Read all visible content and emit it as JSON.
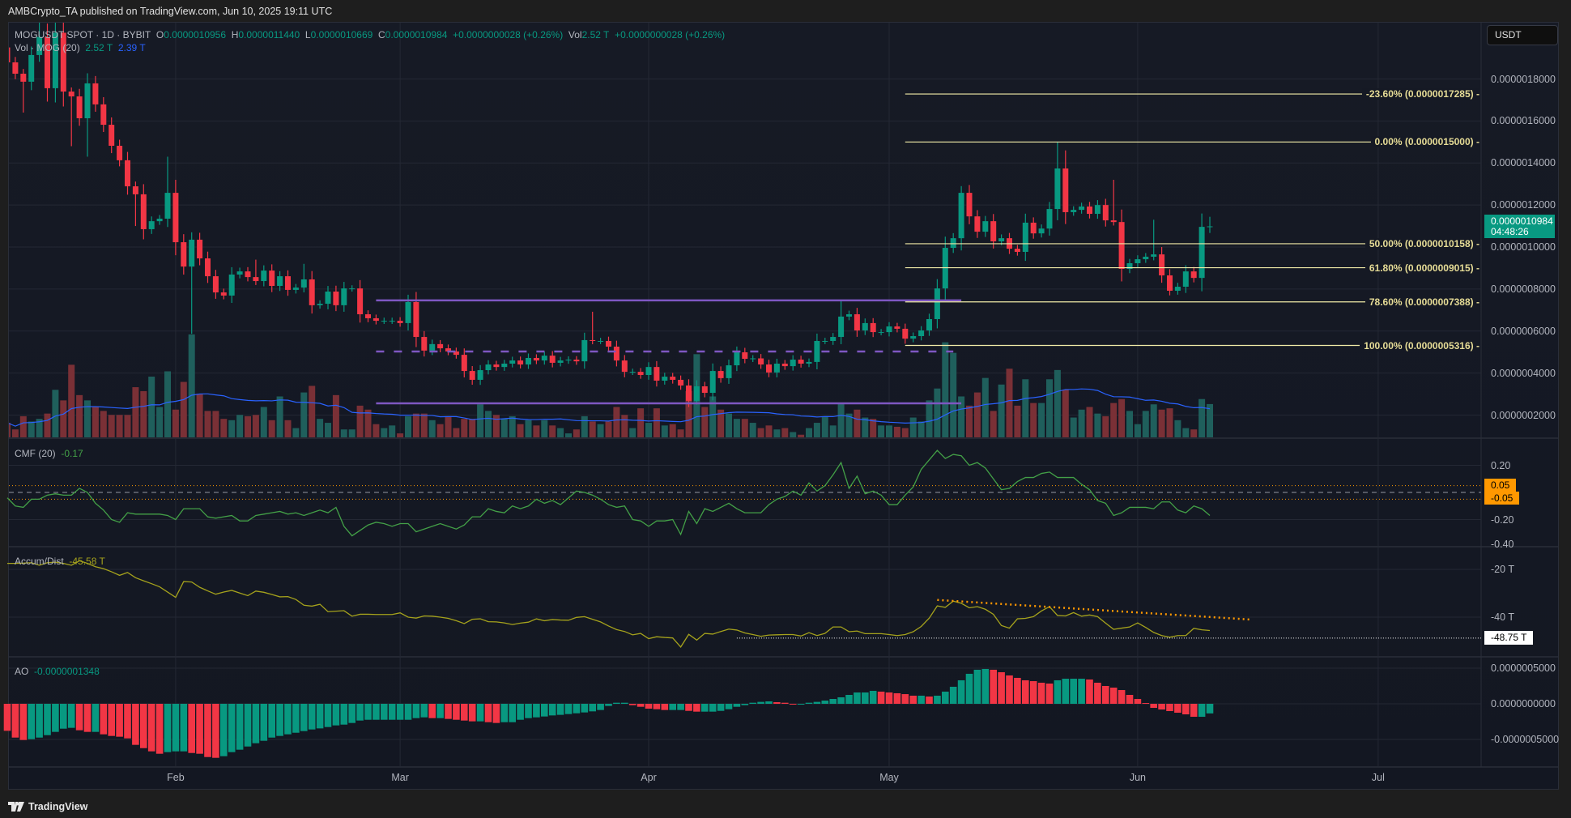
{
  "header": {
    "published": "AMBCrypto_TA published on TradingView.com, Jun 10, 2025 19:11 UTC"
  },
  "legend": {
    "symbol": "MOGUSDT SPOT · 1D · BYBIT",
    "o_label": "O",
    "o": "0.0000010956",
    "h_label": "H",
    "h": "0.0000011440",
    "l_label": "L",
    "l": "0.0000010669",
    "c_label": "C",
    "c": "0.0000010984",
    "change": "+0.0000000028 (+0.26%)",
    "vol_label": "Vol",
    "vol": "2.52 T",
    "vol_change": "+0.0000000028 (+0.26%)"
  },
  "vol_legend": {
    "title": "Vol · MOG (20)",
    "vol": "2.52 T",
    "ma": "2.39 T"
  },
  "currency_button": "USDT",
  "price_axis": [
    "0.0000018000",
    "0.0000016000",
    "0.0000014000",
    "0.0000012000",
    "0.0000010000",
    "0.0000008000",
    "0.0000006000",
    "0.0000004000",
    "0.0000002000"
  ],
  "last_price": {
    "value": "0.0000010984",
    "countdown": "04:48:26"
  },
  "fib": {
    "from": "2025-05-03",
    "levels": [
      {
        "label": "-23.60% (0.0000017285)",
        "price": 1.7285e-06
      },
      {
        "label": "0.00% (0.0000015000)",
        "price": 1.5e-06
      },
      {
        "label": "50.00% (0.0000010158)",
        "price": 1.0158e-06
      },
      {
        "label": "61.80% (0.0000009015)",
        "price": 9.015e-07
      },
      {
        "label": "78.60% (0.0000007388)",
        "price": 7.388e-07
      },
      {
        "label": "100.00% (0.0000005316)",
        "price": 5.316e-07
      }
    ]
  },
  "cmf": {
    "title": "CMF (20)",
    "value": "-0.17",
    "axis": [
      "0.20",
      "-0.20",
      "-0.40"
    ],
    "upper_band": "0.05",
    "lower_band": "-0.05"
  },
  "ad": {
    "title": "Accum/Dist",
    "value": "-45.58 T",
    "axis": [
      "-20 T",
      "-40 T"
    ],
    "marker": "-48.75 T"
  },
  "ao": {
    "title": "AO",
    "value": "-0.0000001348",
    "axis": [
      "0.0000005000",
      "0.0000000000",
      "-0.0000005000"
    ]
  },
  "time_axis": [
    {
      "label": "Feb",
      "date": "2025-02-01"
    },
    {
      "label": "Mar",
      "date": "2025-03-01"
    },
    {
      "label": "Apr",
      "date": "2025-04-01"
    },
    {
      "label": "May",
      "date": "2025-05-01"
    },
    {
      "label": "Jun",
      "date": "2025-06-01"
    },
    {
      "label": "Jul",
      "date": "2025-07-01"
    }
  ],
  "footer": {
    "logo": "TradingView"
  },
  "colors": {
    "up": "#089981",
    "down": "#f23645",
    "vol_up": "#1f5f5c",
    "vol_down": "#7a3036",
    "vol_ma": "#2962ff",
    "fib": "#f2eca8",
    "range_lines": "#7e57c2",
    "cmf": "#43a047",
    "ad": "#a5a21c",
    "band": "#ff9800",
    "trend": "#ff9800"
  },
  "chart_data": {
    "type": "candlestick",
    "x": {
      "start": "2025-01-11",
      "end": "2025-06-10",
      "interval": "1D"
    },
    "ylim": [
      1e-07,
      2e-06
    ],
    "first_open": 1.95e-06,
    "close": [
      1.879e-06,
      1.825e-06,
      1.787e-06,
      1.914e-06,
      2e-06,
      1.756e-06,
      2.02e-06,
      1.74e-06,
      1.717e-06,
      1.613e-06,
      1.779e-06,
      1.679e-06,
      1.582e-06,
      1.482e-06,
      1.413e-06,
      1.289e-06,
      1.251e-06,
      1.085e-06,
      1.123e-06,
      1.135e-06,
      1.258e-06,
      1.023e-06,
      9.07e-07,
      1.035e-06,
      9.46e-07,
      8.61e-07,
      7.84e-07,
      7.69e-07,
      8.69e-07,
      8.84e-07,
      8.57e-07,
      8.38e-07,
      8.88e-07,
      8.15e-07,
      8.61e-07,
      7.96e-07,
      8.07e-07,
      8.46e-07,
      7.23e-07,
      7.3e-07,
      7.88e-07,
      7.23e-07,
      8.03e-07,
      8.03e-07,
      6.8e-07,
      6.61e-07,
      6.49e-07,
      6.49e-07,
      6.49e-07,
      6.38e-07,
      7.38e-07,
      5.72e-07,
      5.07e-07,
      5.38e-07,
      5.18e-07,
      5.03e-07,
      4.87e-07,
      4.1e-07,
      3.68e-07,
      4.14e-07,
      4.41e-07,
      4.29e-07,
      4.45e-07,
      4.6e-07,
      4.41e-07,
      4.72e-07,
      4.6e-07,
      4.83e-07,
      4.49e-07,
      4.6e-07,
      4.64e-07,
      4.56e-07,
      5.57e-07,
      5.53e-07,
      5.53e-07,
      5.26e-07,
      4.6e-07,
      4.06e-07,
      4.06e-07,
      3.91e-07,
      4.29e-07,
      3.64e-07,
      3.83e-07,
      3.68e-07,
      3.41e-07,
      2.68e-07,
      3.37e-07,
      3.06e-07,
      4.1e-07,
      3.76e-07,
      4.37e-07,
      4.99e-07,
      4.68e-07,
      4.7e-07,
      4.41e-07,
      4.03e-07,
      4.45e-07,
      4.33e-07,
      4.64e-07,
      4.45e-07,
      4.53e-07,
      5.53e-07,
      5.53e-07,
      5.72e-07,
      6.69e-07,
      6.8e-07,
      6.03e-07,
      6.38e-07,
      5.95e-07,
      5.95e-07,
      6.22e-07,
      6.11e-07,
      5.64e-07,
      5.76e-07,
      6.03e-07,
      6.57e-07,
      8.03e-07,
      9.96e-07,
      1.042e-06,
      1.258e-06,
      1.146e-06,
      1.073e-06,
      1.123e-06,
      1.027e-06,
      1.042e-06,
      9.92e-07,
      9.77e-07,
      1.116e-06,
      1.065e-06,
      1.088e-06,
      1.181e-06,
      1.374e-06,
      1.166e-06,
      1.177e-06,
      1.193e-06,
      1.158e-06,
      1.2e-06,
      1.127e-06,
      1.119e-06,
      8.96e-07,
      9.23e-07,
      9.42e-07,
      9.54e-07,
      9.65e-07,
      8.65e-07,
      7.92e-07,
      8.11e-07,
      8.84e-07,
      8.53e-07,
      1.096e-06,
      1.0984e-06
    ],
    "wicks": [
      {
        "date": "2025-01-13",
        "low": 1.64e-06
      },
      {
        "date": "2025-01-15",
        "high": 2.15e-06
      },
      {
        "date": "2025-01-17",
        "high": 2.15e-06
      },
      {
        "date": "2025-01-19",
        "low": 1.48e-06
      },
      {
        "date": "2025-01-21",
        "low": 1.43e-06
      },
      {
        "date": "2025-01-27",
        "low": 1.1e-06
      },
      {
        "date": "2025-01-31",
        "high": 1.43e-06
      },
      {
        "date": "2025-02-03",
        "high": 1.07e-06,
        "low": 5.87e-07
      },
      {
        "date": "2025-02-11",
        "high": 9.4e-07
      },
      {
        "date": "2025-02-17",
        "high": 9.2e-07
      },
      {
        "date": "2025-03-25",
        "high": 6.92e-07
      },
      {
        "date": "2025-04-07",
        "low": 2.5e-07
      },
      {
        "date": "2025-04-25",
        "high": 7.45e-07
      },
      {
        "date": "2025-05-10",
        "high": 1.29e-06
      },
      {
        "date": "2025-05-22",
        "high": 1.5e-06
      },
      {
        "date": "2025-05-23",
        "high": 1.46e-06
      },
      {
        "date": "2025-05-29",
        "high": 1.32e-06
      },
      {
        "date": "2025-06-03",
        "high": 1.13e-06
      },
      {
        "date": "2025-06-05",
        "low": 7.7e-07
      },
      {
        "date": "2025-06-10",
        "high": 1.144e-06,
        "low": 1.0669e-06
      }
    ],
    "volume_unit": "T",
    "volume": [
      1.1,
      0.6,
      1.6,
      1.2,
      1.4,
      1.8,
      3.6,
      2.8,
      5.5,
      3.2,
      2.8,
      2.3,
      2.0,
      1.7,
      1.7,
      1.7,
      3.8,
      3.5,
      4.6,
      2.3,
      5.0,
      2.1,
      4.2,
      7.8,
      3.3,
      2.0,
      2.0,
      1.4,
      1.3,
      1.7,
      1.6,
      1.7,
      2.3,
      1.3,
      3.1,
      1.3,
      0.7,
      3.4,
      3.9,
      1.4,
      1.1,
      3.2,
      0.6,
      0.6,
      2.4,
      2.1,
      1.0,
      0.7,
      0.9,
      0.3,
      1.6,
      1.8,
      1.8,
      1.3,
      1.0,
      1.6,
      0.7,
      1.4,
      1.4,
      2.5,
      2.0,
      1.7,
      1.4,
      1.6,
      1.0,
      1.3,
      0.9,
      1.3,
      0.9,
      0.7,
      0.3,
      0.6,
      1.6,
      1.2,
      1.0,
      1.2,
      2.3,
      1.7,
      0.7,
      2.2,
      1.1,
      2.2,
      0.9,
      1.0,
      0.6,
      3.5,
      6.3,
      2.3,
      3.1,
      2.1,
      1.8,
      1.4,
      1.4,
      1.1,
      0.7,
      0.9,
      0.6,
      0.7,
      0.4,
      0.2,
      0.7,
      1.1,
      1.6,
      0.9,
      2.6,
      1.8,
      2.1,
      1.5,
      1.4,
      0.9,
      0.9,
      0.8,
      0.7,
      1.5,
      1.2,
      2.8,
      3.7,
      7.2,
      6.4,
      3.1,
      2.4,
      3.4,
      4.5,
      2.0,
      4.0,
      5.2,
      2.4,
      4.4,
      2.6,
      2.6,
      4.4,
      5.1,
      3.6,
      1.5,
      2.1,
      2.3,
      1.8,
      1.6,
      2.6,
      2.9,
      2.0,
      1.0,
      2.0,
      2.5,
      2.1,
      2.2,
      1.3,
      0.7,
      0.6,
      2.9,
      2.52
    ],
    "range_lines": [
      {
        "price": 7.46e-07,
        "style": "solid",
        "from": "2025-02-26",
        "to": "2025-05-10"
      },
      {
        "price": 5.03e-07,
        "style": "dashed",
        "from": "2025-02-26",
        "to": "2025-05-09"
      },
      {
        "price": 2.56e-07,
        "style": "solid",
        "from": "2025-02-26",
        "to": "2025-05-10"
      }
    ],
    "cmf": [
      -0.04,
      -0.1,
      -0.11,
      -0.05,
      -0.05,
      -0.02,
      -0.01,
      -0.02,
      -0.02,
      0.03,
      0.0,
      -0.08,
      -0.13,
      -0.2,
      -0.22,
      -0.15,
      -0.16,
      -0.16,
      -0.16,
      -0.16,
      -0.17,
      -0.2,
      -0.12,
      -0.12,
      -0.12,
      -0.18,
      -0.19,
      -0.18,
      -0.17,
      -0.21,
      -0.21,
      -0.17,
      -0.16,
      -0.15,
      -0.14,
      -0.16,
      -0.15,
      -0.17,
      -0.15,
      -0.13,
      -0.15,
      -0.11,
      -0.25,
      -0.32,
      -0.28,
      -0.24,
      -0.22,
      -0.23,
      -0.25,
      -0.23,
      -0.23,
      -0.29,
      -0.27,
      -0.25,
      -0.23,
      -0.25,
      -0.27,
      -0.24,
      -0.18,
      -0.18,
      -0.12,
      -0.14,
      -0.15,
      -0.1,
      -0.12,
      -0.1,
      -0.05,
      -0.08,
      -0.06,
      -0.09,
      -0.04,
      0.01,
      0.0,
      -0.02,
      -0.05,
      -0.09,
      -0.11,
      -0.1,
      -0.2,
      -0.21,
      -0.25,
      -0.21,
      -0.21,
      -0.2,
      -0.31,
      -0.14,
      -0.23,
      -0.12,
      -0.14,
      -0.11,
      -0.08,
      -0.12,
      -0.15,
      -0.15,
      -0.15,
      -0.09,
      -0.05,
      -0.03,
      0.01,
      -0.02,
      0.07,
      0.01,
      0.05,
      0.13,
      0.22,
      0.03,
      0.12,
      -0.01,
      0.01,
      -0.02,
      -0.09,
      -0.09,
      -0.02,
      0.04,
      0.17,
      0.24,
      0.31,
      0.25,
      0.28,
      0.27,
      0.2,
      0.22,
      0.18,
      0.1,
      0.02,
      0.03,
      0.08,
      0.11,
      0.11,
      0.14,
      0.15,
      0.11,
      0.11,
      0.11,
      0.06,
      0.02,
      -0.06,
      -0.08,
      -0.17,
      -0.15,
      -0.11,
      -0.11,
      -0.11,
      -0.12,
      -0.07,
      -0.07,
      -0.13,
      -0.15,
      -0.1,
      -0.12,
      -0.17
    ],
    "ad_unit": "T",
    "ad": [
      -17.5,
      -17.5,
      -17.4,
      -17.2,
      -18.3,
      -17.2,
      -17.0,
      -17.5,
      -18.3,
      -16.4,
      -17.5,
      -18.9,
      -19.7,
      -21,
      -22.5,
      -21.3,
      -23.5,
      -24.8,
      -26,
      -27.3,
      -29.5,
      -31.7,
      -25.1,
      -25.3,
      -27.5,
      -29,
      -30.4,
      -29.5,
      -28.8,
      -29.9,
      -31,
      -29.1,
      -29.6,
      -30.5,
      -31.5,
      -31.4,
      -32.6,
      -35,
      -35.4,
      -34.6,
      -37.7,
      -37.5,
      -37.3,
      -39.6,
      -38.8,
      -38.8,
      -38.9,
      -38.9,
      -38.9,
      -38.2,
      -40,
      -40.4,
      -39.5,
      -39.6,
      -40,
      -40.5,
      -41.5,
      -42.7,
      -40.9,
      -40.7,
      -41.9,
      -42,
      -42.4,
      -43.1,
      -42.5,
      -42.1,
      -40.7,
      -41.5,
      -41,
      -41.2,
      -41.3,
      -40.1,
      -39.8,
      -40.9,
      -42,
      -43.7,
      -45.2,
      -46,
      -47.4,
      -46.8,
      -49,
      -48.2,
      -48.5,
      -48.7,
      -52.5,
      -47.2,
      -49.6,
      -46.8,
      -47.1,
      -46,
      -45,
      -45.4,
      -46.6,
      -47.3,
      -48,
      -47.5,
      -47.4,
      -47.3,
      -47.3,
      -47.9,
      -46.5,
      -47.7,
      -46.8,
      -44.1,
      -44.1,
      -46.1,
      -45.8,
      -46.9,
      -46.9,
      -46.9,
      -47.3,
      -47.7,
      -47.3,
      -46.1,
      -43.9,
      -40.4,
      -35.3,
      -35.9,
      -33.3,
      -34.2,
      -36.1,
      -35.6,
      -36.7,
      -38.8,
      -43.5,
      -44.6,
      -40.7,
      -40.5,
      -39.8,
      -37.4,
      -35.6,
      -39.3,
      -39.5,
      -38.1,
      -39.6,
      -39.1,
      -39.8,
      -42.5,
      -45.1,
      -44.6,
      -44.1,
      -42.4,
      -44.3,
      -46.4,
      -47.7,
      -48.4,
      -47.7,
      -47.7,
      -44.7,
      -45.3,
      -45.58
    ],
    "ad_trendline": {
      "from": {
        "date": "2025-05-07",
        "value": -32.8
      },
      "to": {
        "date": "2025-06-15",
        "value": -41.0
      }
    },
    "ad_marker_line": {
      "from": "2025-04-12",
      "value": -48.75
    },
    "ao": [
      -3.79e-07,
      -4.74e-07,
      -5.08e-07,
      -4.96e-07,
      -4.74e-07,
      -4.4e-07,
      -3.94e-07,
      -3.49e-07,
      -3.37e-07,
      -3.71e-07,
      -3.94e-07,
      -3.94e-07,
      -4.28e-07,
      -4.51e-07,
      -4.62e-07,
      -4.85e-07,
      -5.76e-07,
      -6.22e-07,
      -6.67e-07,
      -7.01e-07,
      -6.78e-07,
      -6.67e-07,
      -6.67e-07,
      -6.9e-07,
      -7.01e-07,
      -7.47e-07,
      -7.58e-07,
      -7.35e-07,
      -6.78e-07,
      -6.44e-07,
      -5.99e-07,
      -5.53e-07,
      -5.19e-07,
      -4.74e-07,
      -4.51e-07,
      -4.28e-07,
      -4.06e-07,
      -3.83e-07,
      -3.6e-07,
      -3.45e-07,
      -3.26e-07,
      -3.03e-07,
      -2.92e-07,
      -2.69e-07,
      -2.35e-07,
      -2.24e-07,
      -2.24e-07,
      -2.24e-07,
      -2.24e-07,
      -2.24e-07,
      -2.24e-07,
      -2.01e-07,
      -1.9e-07,
      -2.01e-07,
      -2.01e-07,
      -2.12e-07,
      -2.24e-07,
      -2.35e-07,
      -2.46e-07,
      -2.46e-07,
      -2.58e-07,
      -2.69e-07,
      -2.58e-07,
      -2.58e-07,
      -2.24e-07,
      -2.01e-07,
      -1.9e-07,
      -1.78e-07,
      -1.63e-07,
      -1.55e-07,
      -1.44e-07,
      -1.33e-07,
      -1.21e-07,
      -1.06e-07,
      -8.7e-08,
      -3e-08,
      1.5e-08,
      1.5e-08,
      -1.9e-08,
      -4.2e-08,
      -6.8e-08,
      -7.6e-08,
      -8.7e-08,
      -8.7e-08,
      -8.7e-08,
      -9.9e-08,
      -1.1e-07,
      -1.1e-07,
      -1.1e-07,
      -9.9e-08,
      -7.6e-08,
      -4.2e-08,
      -1.9e-08,
      1.5e-08,
      2.7e-08,
      3.4e-08,
      2.3e-08,
      1.5e-08,
      -2e-09,
      -2e-09,
      1.5e-08,
      2.7e-08,
      4.5e-08,
      6.8e-08,
      9.1e-08,
      1.25e-07,
      1.59e-07,
      1.59e-07,
      1.82e-07,
      1.71e-07,
      1.59e-07,
      1.48e-07,
      1.36e-07,
      1.14e-07,
      1.14e-07,
      1.02e-07,
      1.14e-07,
      1.71e-07,
      2.39e-07,
      3.3e-07,
      4.21e-07,
      4.78e-07,
      4.89e-07,
      4.78e-07,
      4.43e-07,
      3.98e-07,
      3.64e-07,
      3.3e-07,
      3.18e-07,
      2.96e-07,
      2.84e-07,
      3.3e-07,
      3.52e-07,
      3.52e-07,
      3.52e-07,
      3.41e-07,
      2.96e-07,
      2.5e-07,
      2.27e-07,
      1.93e-07,
      1.25e-07,
      6.8e-08,
      1.1e-08,
      -5.7e-08,
      -8e-08,
      -1.02e-07,
      -1.25e-07,
      -1.48e-07,
      -1.82e-07,
      -1.82e-07,
      -1.348e-07
    ]
  }
}
